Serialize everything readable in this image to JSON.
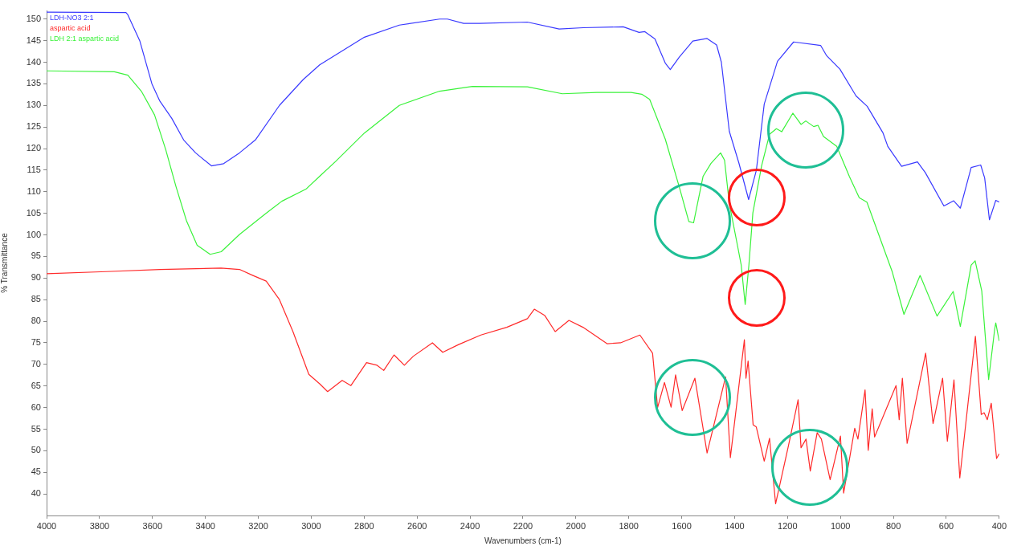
{
  "chart_data": {
    "type": "line",
    "xlabel": "Wavenumbers (cm-1)",
    "ylabel": "% Transmittance",
    "xlim": [
      4000,
      400
    ],
    "ylim": [
      35,
      152
    ],
    "xticks": [
      4000,
      3800,
      3600,
      3400,
      3200,
      3000,
      2800,
      2600,
      2400,
      2200,
      2000,
      1800,
      1600,
      1400,
      1200,
      1000,
      800,
      600,
      400
    ],
    "yticks": [
      40,
      45,
      50,
      55,
      60,
      65,
      70,
      75,
      80,
      85,
      90,
      95,
      100,
      105,
      110,
      115,
      120,
      125,
      130,
      135,
      140,
      145,
      150
    ],
    "legend": "top left",
    "marker": "none",
    "line_style": "solid",
    "series": [
      {
        "name": "LDH-NO3 2:1",
        "color": "#3a3aff",
        "x": [
          4000,
          3700,
          3693,
          3648,
          3602,
          3572,
          3527,
          3482,
          3437,
          3377,
          3331,
          3271,
          3211,
          3120,
          3030,
          2968,
          2799,
          2667,
          2515,
          2485,
          2424,
          2364,
          2183,
          2063,
          1972,
          1821,
          1761,
          1740,
          1701,
          1662,
          1643,
          1609,
          1558,
          1504,
          1468,
          1450,
          1420,
          1384,
          1347,
          1318,
          1288,
          1238,
          1177,
          1075,
          1052,
          1002,
          941,
          899,
          839,
          821,
          769,
          709,
          679,
          609,
          572,
          547,
          506,
          470,
          455,
          437,
          413,
          400
        ],
        "values": [
          151.6,
          151.5,
          151,
          145,
          135,
          131,
          127,
          122,
          119,
          116,
          116.5,
          119,
          122,
          130,
          136,
          139.4,
          145.8,
          148.6,
          150,
          150,
          149,
          149,
          149.3,
          147.7,
          148,
          148.2,
          146.9,
          147.1,
          145.4,
          139.8,
          138.3,
          141.2,
          144.9,
          145.5,
          144,
          140,
          124,
          116.7,
          108.2,
          114.9,
          130.3,
          140.2,
          144.7,
          143.9,
          141.5,
          138.4,
          132.2,
          129.8,
          123.6,
          120.5,
          115.9,
          116.9,
          114.4,
          106.7,
          107.9,
          106.2,
          115.6,
          116.2,
          113.2,
          103.5,
          108,
          107.6
        ]
      },
      {
        "name": "aspartic acid",
        "color": "#ff2a2a",
        "x": [
          4000,
          3774,
          3572,
          3341,
          3271,
          3220,
          3170,
          3120,
          3069,
          3009,
          2968,
          2938,
          2883,
          2850,
          2791,
          2751,
          2726,
          2687,
          2648,
          2614,
          2542,
          2503,
          2443,
          2359,
          2261,
          2183,
          2157,
          2117,
          2078,
          2026,
          1973,
          1882,
          1831,
          1758,
          1710,
          1691,
          1665,
          1640,
          1623,
          1598,
          1550,
          1504,
          1434,
          1416,
          1363,
          1357,
          1349,
          1330,
          1318,
          1288,
          1268,
          1245,
          1197,
          1160,
          1149,
          1130,
          1114,
          1088,
          1072,
          1039,
          1000,
          988,
          946,
          934,
          907,
          895,
          880,
          871,
          790,
          778,
          766,
          748,
          678,
          650,
          614,
          596,
          571,
          549,
          490,
          468,
          457,
          445,
          430,
          410,
          400
        ],
        "values": [
          91,
          91.5,
          92,
          92.3,
          92,
          90.6,
          89.3,
          85,
          77.6,
          67.7,
          65.5,
          63.7,
          66.3,
          65.1,
          70.4,
          69.8,
          68.6,
          72.2,
          69.8,
          71.9,
          75,
          72.8,
          74.6,
          76.8,
          78.6,
          80.6,
          82.8,
          81.3,
          77.6,
          80.2,
          78.6,
          74.8,
          75,
          76.8,
          72.6,
          60,
          65.8,
          60.1,
          67.6,
          59.3,
          66.8,
          49.5,
          67.1,
          48.4,
          75.7,
          66.8,
          70.8,
          56,
          55.5,
          47.6,
          52.9,
          37.7,
          51,
          61.8,
          50.7,
          52.7,
          45.3,
          54.2,
          52.7,
          43.3,
          53.4,
          40.2,
          55.2,
          52.7,
          64.1,
          50.1,
          59.7,
          53.2,
          65.1,
          57.2,
          66.8,
          51.7,
          72.6,
          56.3,
          66.8,
          52.2,
          66.4,
          43.7,
          76.5,
          58.4,
          58.8,
          57.2,
          61,
          48.2,
          49.3
        ]
      },
      {
        "name": "LDH 2:1 aspartic acid",
        "color": "#3af23a",
        "x": [
          4000,
          3744,
          3693,
          3642,
          3592,
          3550,
          3511,
          3471,
          3431,
          3382,
          3340,
          3271,
          3171,
          3111,
          3020,
          2968,
          2908,
          2799,
          2667,
          2515,
          2391,
          2183,
          2051,
          1920,
          1791,
          1751,
          1721,
          1662,
          1609,
          1573,
          1555,
          1519,
          1489,
          1453,
          1438,
          1420,
          1389,
          1375,
          1360,
          1346,
          1331,
          1298,
          1268,
          1242,
          1222,
          1180,
          1149,
          1131,
          1101,
          1085,
          1064,
          1014,
          966,
          929,
          900,
          855,
          804,
          760,
          699,
          635,
          574,
          547,
          506,
          491,
          466,
          440,
          417,
          413,
          400
        ],
        "values": [
          138,
          137.8,
          137,
          133.3,
          127.8,
          119.8,
          111.2,
          103.2,
          97.6,
          95.5,
          96.1,
          100.1,
          105,
          107.8,
          110.6,
          113.6,
          117,
          123.6,
          130,
          133.3,
          134.4,
          134.3,
          132.7,
          133,
          133,
          132.6,
          131.4,
          122.2,
          111.1,
          103.1,
          102.8,
          113.6,
          116.6,
          119,
          117.3,
          107.3,
          97.5,
          93,
          83.9,
          93,
          105.1,
          116,
          123.3,
          124.6,
          123.9,
          128.2,
          125.6,
          126.4,
          125.1,
          125.4,
          122.8,
          120.5,
          113.5,
          108.6,
          107.6,
          100,
          91.4,
          81.6,
          90.6,
          81.2,
          86.9,
          78.8,
          93,
          94,
          87,
          66.5,
          78.2,
          79.6,
          75.4
        ]
      }
    ]
  }
}
